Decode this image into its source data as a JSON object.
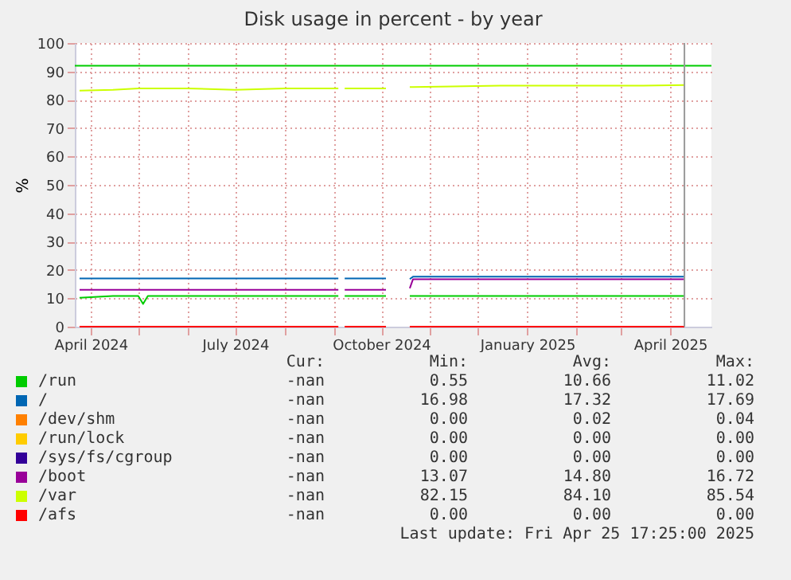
{
  "chart_data": {
    "type": "line",
    "title": "Disk usage in percent - by year",
    "ylabel": "%",
    "x": [
      "2024-03-25",
      "2024-04-15",
      "2024-05-01",
      "2024-05-04",
      "2024-05-07",
      "2024-06-01",
      "2024-07-01",
      "2024-08-01",
      "2024-09-04",
      "2024-09-06",
      "2024-09-08",
      "2024-10-04",
      "2024-10-10",
      "2024-10-19",
      "2024-10-21",
      "2024-11-15",
      "2024-12-15",
      "2025-01-15",
      "2025-02-15",
      "2025-03-15",
      "2025-04-10"
    ],
    "series": [
      {
        "name": "/run",
        "color": "#00cc00",
        "values": [
          10.2,
          10.8,
          10.8,
          8,
          10.8,
          10.8,
          10.8,
          10.8,
          10.8,
          null,
          10.8,
          10.8,
          null,
          10.8,
          10.8,
          10.8,
          10.8,
          10.8,
          10.8,
          10.8,
          10.8
        ]
      },
      {
        "name": "/",
        "color": "#0066b3",
        "values": [
          17,
          17,
          17,
          17,
          17,
          17,
          17,
          17,
          17,
          null,
          17,
          17,
          null,
          16.8,
          17.6,
          17.6,
          17.6,
          17.6,
          17.6,
          17.6,
          17.6
        ]
      },
      {
        "name": "/dev/shm",
        "color": "#ff8000",
        "values": [
          null,
          null,
          null,
          null,
          null,
          null,
          null,
          null,
          null,
          null,
          null,
          null,
          null,
          null,
          null,
          null,
          null,
          null,
          null,
          null,
          null
        ]
      },
      {
        "name": "/run/lock",
        "color": "#ffcc00",
        "values": [
          null,
          null,
          null,
          null,
          null,
          null,
          null,
          null,
          null,
          null,
          null,
          null,
          null,
          null,
          null,
          null,
          null,
          null,
          null,
          null,
          null
        ]
      },
      {
        "name": "/sys/fs/cgroup",
        "color": "#330099",
        "values": [
          null,
          null,
          null,
          null,
          null,
          null,
          null,
          null,
          null,
          null,
          null,
          null,
          null,
          null,
          null,
          null,
          null,
          null,
          null,
          null,
          null
        ]
      },
      {
        "name": "/boot",
        "color": "#990099",
        "values": [
          13,
          13,
          13,
          13,
          13,
          13,
          13,
          13,
          13,
          null,
          13,
          13,
          null,
          13.5,
          16.7,
          16.7,
          16.7,
          16.7,
          16.7,
          16.7,
          16.7
        ]
      },
      {
        "name": "/var",
        "color": "#ccff00",
        "values": [
          83.2,
          83.5,
          84,
          84,
          84,
          84,
          83.5,
          84,
          84,
          null,
          84,
          84,
          null,
          84.5,
          84.5,
          84.7,
          85,
          85,
          85,
          85,
          85.2
        ]
      },
      {
        "name": "/afs",
        "color": "#ff0000",
        "values": [
          0,
          0,
          0,
          0,
          0,
          0,
          0,
          0,
          0,
          null,
          0,
          0,
          null,
          0,
          0,
          0,
          0,
          0,
          0,
          0,
          0
        ]
      }
    ],
    "xlim": [
      "2024-03-22",
      "2025-04-27"
    ],
    "xticks": [
      {
        "value": "2024-04-01",
        "label": "April 2024"
      },
      {
        "value": "2024-05-01",
        "label": null
      },
      {
        "value": "2024-06-01",
        "label": null
      },
      {
        "value": "2024-07-01",
        "label": "July 2024"
      },
      {
        "value": "2024-08-01",
        "label": null
      },
      {
        "value": "2024-09-01",
        "label": null
      },
      {
        "value": "2024-10-01",
        "label": "October 2024"
      },
      {
        "value": "2024-11-01",
        "label": null
      },
      {
        "value": "2024-12-01",
        "label": null
      },
      {
        "value": "2025-01-01",
        "label": "January 2025"
      },
      {
        "value": "2025-02-01",
        "label": null
      },
      {
        "value": "2025-03-01",
        "label": null
      },
      {
        "value": "2025-04-01",
        "label": "April 2025"
      }
    ],
    "ylim": [
      0,
      100
    ],
    "yticks": [
      0,
      10,
      20,
      30,
      40,
      50,
      60,
      70,
      80,
      90,
      100
    ],
    "grid": true,
    "legend": "bottom",
    "ref_lines": [
      {
        "axis": "y",
        "value": 92,
        "color": "#00cc00"
      },
      {
        "axis": "x",
        "value": "2025-04-10",
        "color": "#999999"
      }
    ],
    "annotations": [
      "Cur:",
      "Min:",
      "Avg:",
      "Max:",
      "-nan",
      "0.55",
      "10.66",
      "11.02",
      "-nan",
      "16.98",
      "17.32",
      "17.69",
      "-nan",
      "0.00",
      "0.02",
      "0.04",
      "-nan",
      "0.00",
      "0.00",
      "0.00",
      "-nan",
      "0.00",
      "0.00",
      "0.00",
      "-nan",
      "13.07",
      "14.80",
      "16.72",
      "-nan",
      "82.15",
      "84.10",
      "85.54",
      "-nan",
      "0.00",
      "0.00",
      "0.00",
      "Last update:  Fri Apr 25 17:25:00 2025"
    ]
  }
}
